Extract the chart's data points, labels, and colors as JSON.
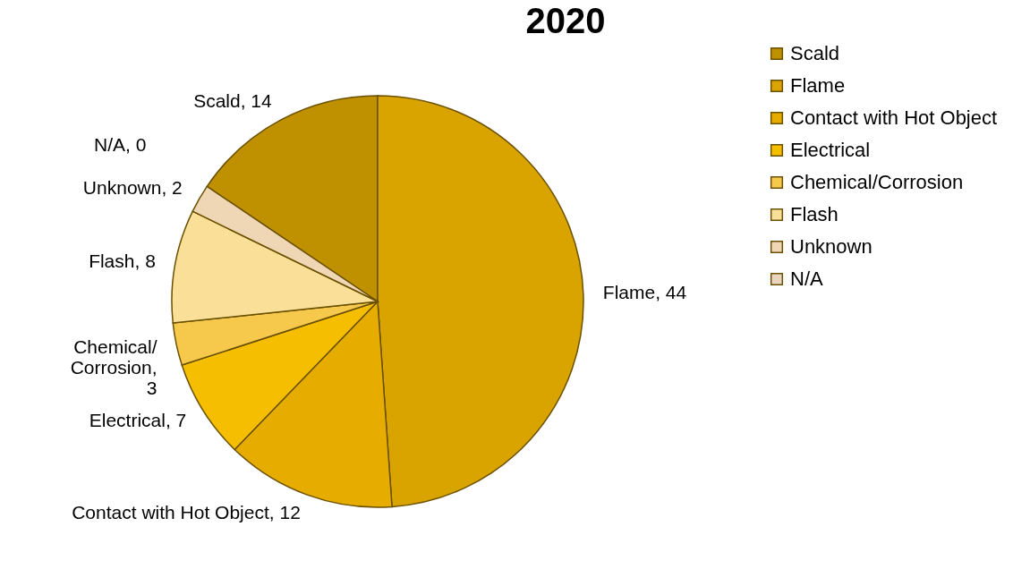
{
  "chart_data": {
    "type": "pie",
    "title": "2020",
    "categories": [
      "Scald",
      "Flame",
      "Contact with Hot Object",
      "Electrical",
      "Chemical/Corrosion",
      "Flash",
      "Unknown",
      "N/A"
    ],
    "values": [
      14,
      44,
      12,
      7,
      3,
      8,
      2,
      0
    ],
    "colors": [
      "#bf9000",
      "#d9a400",
      "#e6ad00",
      "#f5be00",
      "#f6c94d",
      "#fadf98",
      "#efd6b4",
      "#e9d5bd"
    ],
    "value_labels": [
      "Scald, 14",
      "Flame, 44",
      "Contact with Hot Object, 12",
      "Electrical, 7",
      "Chemical/Corrosion, 3",
      "Flash, 8",
      "Unknown, 2",
      "N/A, 0"
    ],
    "legend": "right"
  }
}
